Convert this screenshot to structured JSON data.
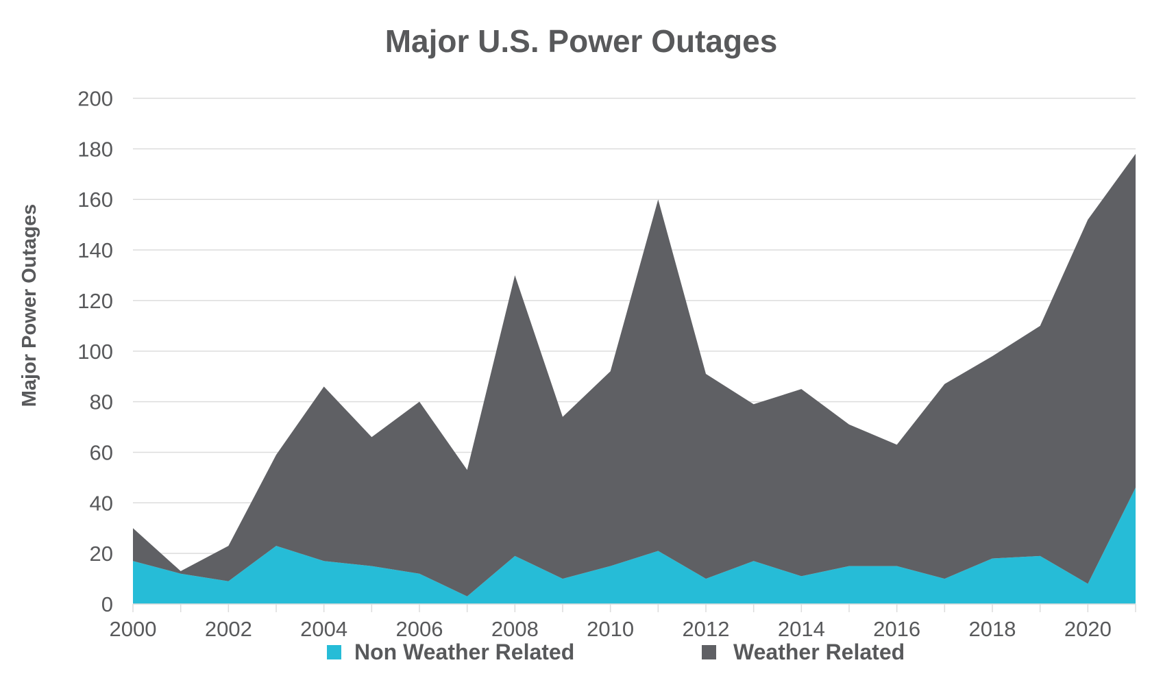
{
  "chart_data": {
    "type": "area",
    "stacked": true,
    "title": "Major U.S. Power Outages",
    "xlabel": "",
    "ylabel": "Major Power Outages",
    "x": [
      2000,
      2001,
      2002,
      2003,
      2004,
      2005,
      2006,
      2007,
      2008,
      2009,
      2010,
      2011,
      2012,
      2013,
      2014,
      2015,
      2016,
      2017,
      2018,
      2019,
      2020,
      2021
    ],
    "xlim": [
      2000,
      2021
    ],
    "ylim": [
      0,
      200
    ],
    "xticks": [
      "2000",
      "2002",
      "2004",
      "2006",
      "2008",
      "2010",
      "2012",
      "2014",
      "2016",
      "2018",
      "2020"
    ],
    "yticks": [
      "0",
      "20",
      "40",
      "60",
      "80",
      "100",
      "120",
      "140",
      "160",
      "180",
      "200"
    ],
    "grid": "horizontal",
    "legend_position": "bottom",
    "series": [
      {
        "name": "Non Weather Related",
        "color": "#26bcd7",
        "values": [
          17,
          12,
          9,
          23,
          17,
          15,
          12,
          3,
          19,
          10,
          15,
          21,
          10,
          17,
          11,
          15,
          15,
          10,
          18,
          19,
          8,
          46
        ]
      },
      {
        "name": "Weather Related",
        "color": "#5f6064",
        "values": [
          13,
          1,
          14,
          36,
          69,
          51,
          68,
          50,
          111,
          64,
          77,
          139,
          81,
          62,
          74,
          56,
          48,
          77,
          80,
          91,
          144,
          132
        ]
      }
    ]
  }
}
